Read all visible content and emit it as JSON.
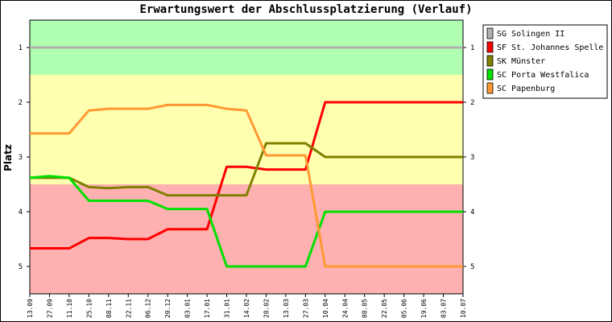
{
  "chart_data": {
    "type": "line",
    "title": "Erwartungswert der Abschlussplatzierung (Verlauf)",
    "ylabel": "Platz",
    "xlabel": "",
    "ylim": [
      0.5,
      5.5
    ],
    "y_ticks": [
      "1",
      "2",
      "3",
      "4",
      "5"
    ],
    "y_inverted": true,
    "zones": [
      {
        "from": 0.5,
        "to": 1.5,
        "color": "#b0ffb0"
      },
      {
        "from": 1.5,
        "to": 3.5,
        "color": "#ffffb0"
      },
      {
        "from": 3.5,
        "to": 5.5,
        "color": "#ffb0b0"
      }
    ],
    "categories": [
      "13.09",
      "27.09",
      "11.10",
      "25.10",
      "08.11",
      "22.11",
      "06.12",
      "20.12",
      "03.01",
      "17.01",
      "31.01",
      "14.02",
      "28.02",
      "13.03",
      "27.03",
      "10.04",
      "24.04",
      "08.05",
      "22.05",
      "05.06",
      "19.06",
      "03.07",
      "10.07"
    ],
    "legend_position": "right",
    "series": [
      {
        "name": "SG Solingen II",
        "color": "#b0b0b0",
        "values": [
          1,
          1,
          1,
          1,
          1,
          1,
          1,
          1,
          1,
          1,
          1,
          1,
          1,
          1,
          1,
          1,
          1,
          1,
          1,
          1,
          1,
          1,
          1
        ]
      },
      {
        "name": "SF St. Johannes Spelle",
        "color": "#ff0000",
        "values": [
          4.67,
          4.67,
          4.67,
          4.48,
          4.48,
          4.5,
          4.5,
          4.32,
          4.32,
          4.32,
          3.18,
          3.18,
          3.23,
          3.23,
          3.23,
          2.0,
          2.0,
          2.0,
          2.0,
          2.0,
          2.0,
          2.0,
          2.0
        ]
      },
      {
        "name": "SK Münster",
        "color": "#808000",
        "values": [
          3.38,
          3.38,
          3.38,
          3.55,
          3.57,
          3.55,
          3.55,
          3.7,
          3.7,
          3.7,
          3.7,
          3.7,
          2.75,
          2.75,
          2.75,
          3.0,
          3.0,
          3.0,
          3.0,
          3.0,
          3.0,
          3.0,
          3.0
        ]
      },
      {
        "name": "SC Porta Westfalica",
        "color": "#00e000",
        "values": [
          3.38,
          3.35,
          3.38,
          3.8,
          3.8,
          3.8,
          3.8,
          3.95,
          3.95,
          3.95,
          5.0,
          5.0,
          5.0,
          5.0,
          5.0,
          4.0,
          4.0,
          4.0,
          4.0,
          4.0,
          4.0,
          4.0,
          4.0
        ]
      },
      {
        "name": "SC Papenburg",
        "color": "#ff9933",
        "values": [
          2.57,
          2.57,
          2.57,
          2.15,
          2.12,
          2.12,
          2.12,
          2.05,
          2.05,
          2.05,
          2.12,
          2.15,
          2.97,
          2.97,
          2.97,
          5.0,
          5.0,
          5.0,
          5.0,
          5.0,
          5.0,
          5.0,
          5.0
        ]
      }
    ]
  }
}
